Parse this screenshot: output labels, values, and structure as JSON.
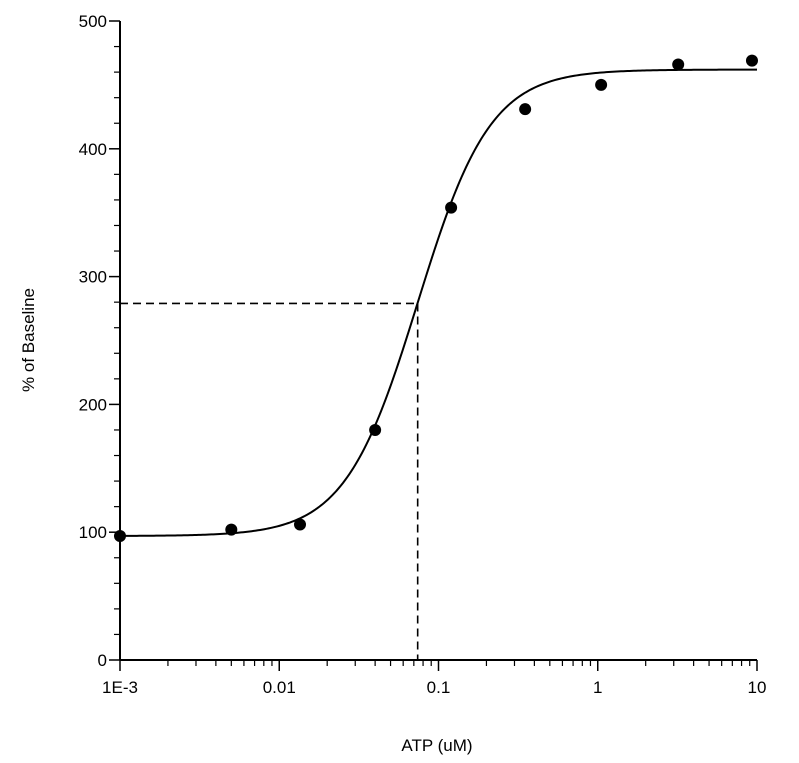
{
  "chart_data": {
    "type": "scatter",
    "xlabel": "ATP (uM)",
    "ylabel": "% of Baseline",
    "xscale": "log",
    "xlim": [
      0.001,
      10
    ],
    "ylim": [
      0,
      500
    ],
    "grid": false,
    "x_ticks": [
      {
        "value": 0.001,
        "label": "1E-3"
      },
      {
        "value": 0.01,
        "label": "0.01"
      },
      {
        "value": 0.1,
        "label": "0.1"
      },
      {
        "value": 1,
        "label": "1"
      },
      {
        "value": 10,
        "label": "10"
      }
    ],
    "y_ticks": [
      {
        "value": 0,
        "label": "0"
      },
      {
        "value": 100,
        "label": "100"
      },
      {
        "value": 200,
        "label": "200"
      },
      {
        "value": 300,
        "label": "300"
      },
      {
        "value": 400,
        "label": "400"
      },
      {
        "value": 500,
        "label": "500"
      }
    ],
    "y_minor_step": 20,
    "points": [
      {
        "x": 0.001,
        "y": 97
      },
      {
        "x": 0.005,
        "y": 102
      },
      {
        "x": 0.0135,
        "y": 106
      },
      {
        "x": 0.04,
        "y": 180
      },
      {
        "x": 0.12,
        "y": 354
      },
      {
        "x": 0.35,
        "y": 431
      },
      {
        "x": 1.05,
        "y": 450
      },
      {
        "x": 3.2,
        "y": 466
      },
      {
        "x": 9.3,
        "y": 469
      }
    ],
    "fit_curve": {
      "model": "sigmoid",
      "bottom": 97,
      "top": 462,
      "ec50": 0.074,
      "hill": 1.9
    },
    "ec50_guide": {
      "x": 0.074,
      "y": 279
    }
  }
}
